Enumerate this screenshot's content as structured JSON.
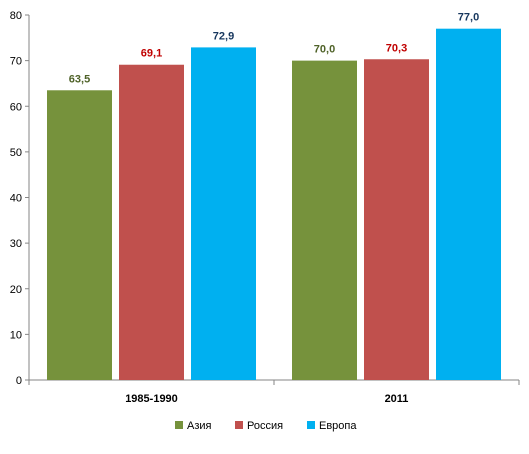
{
  "chart_data": {
    "type": "bar",
    "categories": [
      "1985-1990",
      "2011"
    ],
    "series": [
      {
        "name": "Азия",
        "values": [
          63.5,
          70.0
        ],
        "labels": [
          "63,5",
          "70,0"
        ],
        "color": "#76923c"
      },
      {
        "name": "Россия",
        "values": [
          69.1,
          70.3
        ],
        "labels": [
          "69,1",
          "70,3"
        ],
        "color": "#c0504d"
      },
      {
        "name": "Европа",
        "values": [
          72.9,
          77.0
        ],
        "labels": [
          "72,9",
          "77,0"
        ],
        "color": "#00b0f0"
      }
    ],
    "label_colors": [
      "#4f6228",
      "#c00000",
      "#17375e"
    ],
    "yticks": [
      "0",
      "10",
      "20",
      "30",
      "40",
      "50",
      "60",
      "70",
      "80"
    ],
    "ylim": [
      0,
      80
    ],
    "grid": false,
    "legend": "bottom"
  }
}
